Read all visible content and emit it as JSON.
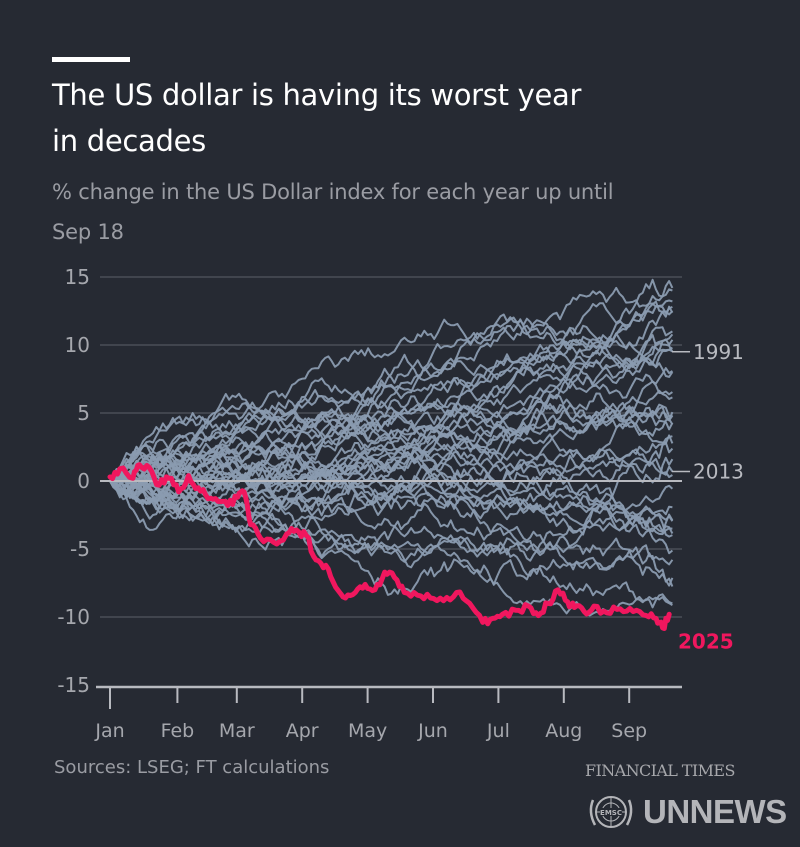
{
  "header": {
    "title_line1": "The US dollar is having its worst year",
    "title_line2": "in decades",
    "subtitle_line1": "% change in the US Dollar index for each year up until",
    "subtitle_line2": "Sep 18"
  },
  "footer": {
    "source": "Sources: LSEG; FT calculations",
    "publisher": "FINANCIAL TIMES",
    "watermark": "UNNEWS",
    "watermark_icon": "un-emblem-icon",
    "watermark_emblem_text": "EMSC"
  },
  "colors": {
    "background": "#262a33",
    "historical_lines": "#8a9bb0",
    "highlight_2025": "#f0175e",
    "gridline": "#4a4e58",
    "zero_line": "#b8bac0",
    "axis_text": "#a5a7ad",
    "label_text": "#b8bac0"
  },
  "chart_data": {
    "type": "line",
    "title": "The US dollar is having its worst year in decades",
    "subtitle": "% change in the US Dollar index for each year up until Sep 18",
    "xlabel": "",
    "ylabel": "",
    "x_ticks": [
      "Jan",
      "Feb",
      "Mar",
      "Apr",
      "May",
      "Jun",
      "Jul",
      "Aug",
      "Sep"
    ],
    "x_range_months": [
      0,
      8.6
    ],
    "y_ticks": [
      15,
      10,
      5,
      0,
      -5,
      -10,
      -15
    ],
    "ylim": [
      -15,
      15
    ],
    "grid": true,
    "annotations": [
      {
        "label": "1991",
        "y": 9.5
      },
      {
        "label": "2013",
        "y": 0.7
      },
      {
        "label": "2025",
        "y": -11.8,
        "highlight": true
      }
    ],
    "highlight_series": {
      "name": "2025",
      "x_month": [
        0,
        0.15,
        0.35,
        0.45,
        0.6,
        0.75,
        0.9,
        1.05,
        1.2,
        1.35,
        1.5,
        1.65,
        1.8,
        1.95,
        2.05,
        2.15,
        2.3,
        2.5,
        2.7,
        2.85,
        3.0,
        3.15,
        3.3,
        3.45,
        3.6,
        3.75,
        3.9,
        4.05,
        4.2,
        4.35,
        4.5,
        4.7,
        4.9,
        5.1,
        5.3,
        5.5,
        5.7,
        5.85,
        6.0,
        6.2,
        6.4,
        6.55,
        6.7,
        6.85,
        7.0,
        7.1,
        7.25,
        7.4,
        7.6,
        7.8,
        8.0,
        8.2,
        8.35,
        8.45,
        8.55
      ],
      "values": [
        0.3,
        0.9,
        0.2,
        1.2,
        1.0,
        -0.3,
        0.2,
        -0.8,
        0.4,
        -0.5,
        -1.3,
        -1.5,
        -1.8,
        -1.2,
        -0.8,
        -3.2,
        -4.2,
        -4.5,
        -3.9,
        -3.6,
        -4.0,
        -5.8,
        -6.2,
        -7.8,
        -8.6,
        -8.2,
        -7.6,
        -8.0,
        -6.7,
        -7.1,
        -8.2,
        -8.4,
        -8.6,
        -8.8,
        -8.2,
        -9.0,
        -10.4,
        -10.1,
        -9.8,
        -9.5,
        -9.2,
        -9.9,
        -9.0,
        -8.0,
        -8.9,
        -9.3,
        -9.6,
        -9.2,
        -9.7,
        -9.4,
        -9.6,
        -9.9,
        -10.1,
        -10.8,
        -9.8
      ]
    },
    "background_series_note": "≈40 historical years (grey), each starting at 0 in Jan; range roughly -11 to +16.5 by Sep",
    "background_series": [
      {
        "name": "1991",
        "end_value": 9.5
      },
      {
        "name": "2013",
        "end_value": 0.7
      }
    ]
  }
}
